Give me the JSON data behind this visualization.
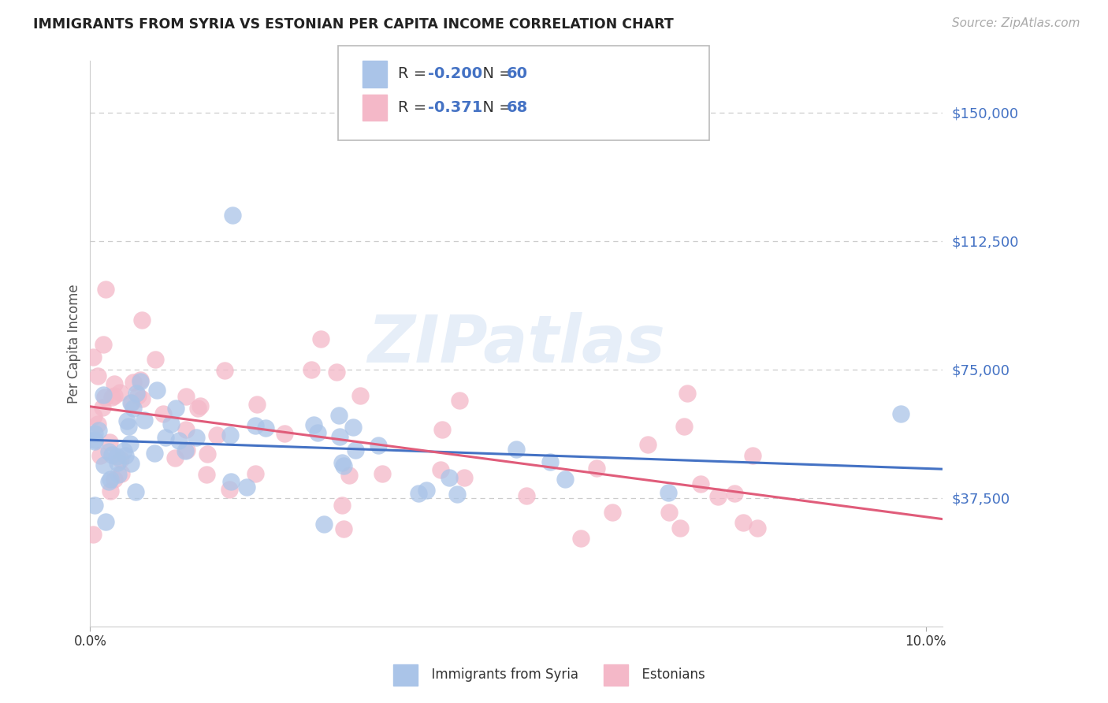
{
  "title": "IMMIGRANTS FROM SYRIA VS ESTONIAN PER CAPITA INCOME CORRELATION CHART",
  "source": "Source: ZipAtlas.com",
  "ylabel": "Per Capita Income",
  "ytick_labels": [
    "$37,500",
    "$75,000",
    "$112,500",
    "$150,000"
  ],
  "ytick_values": [
    37500,
    75000,
    112500,
    150000
  ],
  "ylim": [
    0,
    165000
  ],
  "xlim": [
    0.0,
    0.102
  ],
  "xtick_vals": [
    0.0,
    0.1
  ],
  "xtick_labels": [
    "0.0%",
    "10.0%"
  ],
  "blue_line_color": "#4472c4",
  "pink_line_color": "#e05c7a",
  "scatter_blue_color": "#aac4e8",
  "scatter_pink_color": "#f4b8c8",
  "watermark": "ZIPatlas",
  "background_color": "#ffffff",
  "grid_color": "#cccccc",
  "legend_R_blue": "-0.200",
  "legend_N_blue": "60",
  "legend_R_pink": "-0.371",
  "legend_N_pink": "68",
  "legend_label_blue": "Immigrants from Syria",
  "legend_label_pink": "Estonians"
}
